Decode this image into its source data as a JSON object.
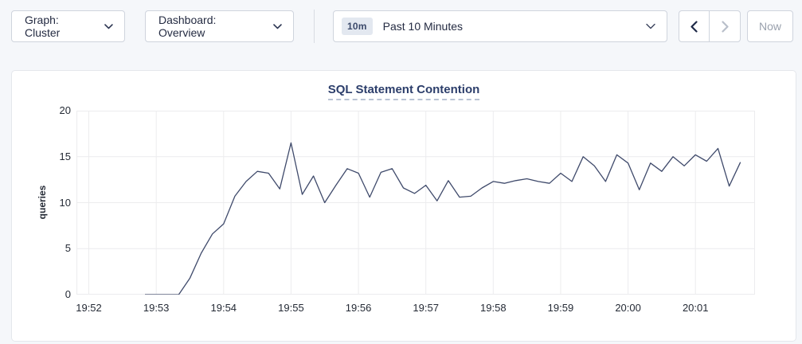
{
  "toolbar": {
    "graph_dropdown_label": "Graph: Cluster",
    "dashboard_dropdown_label": "Dashboard: Overview",
    "time_range_badge": "10m",
    "time_range_label": "Past 10 Minutes",
    "now_label": "Now"
  },
  "chart_data": {
    "type": "line",
    "title": "SQL Statement Contention",
    "ylabel": "queries",
    "legend": "none",
    "grid": true,
    "colors": {
      "line": "#3f4a6b",
      "grid": "#ececee",
      "title": "#2c3e6b",
      "axis_text": "#242a35"
    },
    "y_axis": {
      "lim": [
        0,
        20
      ],
      "ticks": [
        0,
        5,
        10,
        15,
        20
      ]
    },
    "x_axis": {
      "lim_sec": [
        -11,
        593
      ],
      "ticks": [
        {
          "label": "19:52",
          "sec": 0
        },
        {
          "label": "19:53",
          "sec": 60
        },
        {
          "label": "19:54",
          "sec": 120
        },
        {
          "label": "19:55",
          "sec": 180
        },
        {
          "label": "19:56",
          "sec": 240
        },
        {
          "label": "19:57",
          "sec": 300
        },
        {
          "label": "19:58",
          "sec": 360
        },
        {
          "label": "19:59",
          "sec": 420
        },
        {
          "label": "20:00",
          "sec": 480
        },
        {
          "label": "20:01",
          "sec": 540
        }
      ]
    },
    "series": [
      {
        "name": "queries",
        "x_sec": [
          50,
          60,
          70,
          80,
          90,
          100,
          110,
          120,
          130,
          140,
          150,
          160,
          170,
          180,
          190,
          200,
          210,
          220,
          230,
          240,
          250,
          260,
          270,
          280,
          290,
          300,
          310,
          320,
          330,
          340,
          350,
          360,
          370,
          380,
          390,
          400,
          410,
          420,
          430,
          440,
          450,
          460,
          470,
          480,
          490,
          500,
          510,
          520,
          530,
          540,
          550,
          560,
          570,
          580
        ],
        "values": [
          0,
          0,
          0,
          0,
          1.8,
          4.5,
          6.6,
          7.7,
          10.7,
          12.3,
          13.4,
          13.2,
          11.5,
          16.5,
          10.9,
          12.9,
          10.0,
          11.9,
          13.7,
          13.2,
          10.6,
          13.3,
          13.7,
          11.6,
          11.0,
          11.9,
          10.2,
          12.4,
          10.6,
          10.7,
          11.6,
          12.3,
          12.1,
          12.4,
          12.6,
          12.3,
          12.1,
          13.2,
          12.3,
          15.0,
          14.0,
          12.3,
          15.2,
          14.3,
          11.4,
          14.3,
          13.4,
          15.0,
          14.0,
          15.2,
          14.5,
          15.9,
          11.8,
          14.4
        ]
      }
    ]
  }
}
